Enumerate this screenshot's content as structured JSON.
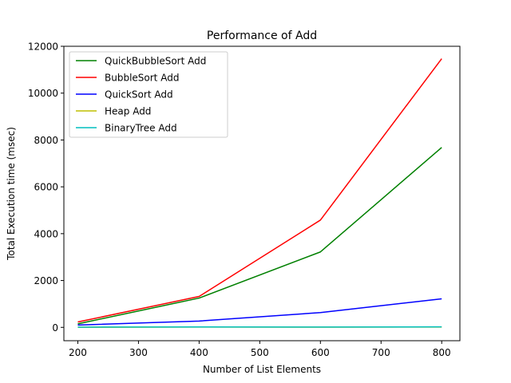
{
  "chart_data": {
    "type": "line",
    "title": "Performance of Add",
    "xlabel": "Number of List Elements",
    "ylabel": "Total Execution time (msec)",
    "x": [
      200,
      400,
      600,
      800
    ],
    "xlim": [
      177,
      830
    ],
    "ylim": [
      -570,
      12000
    ],
    "xticks": [
      200,
      300,
      400,
      500,
      600,
      700,
      800
    ],
    "yticks": [
      0,
      2000,
      4000,
      6000,
      8000,
      10000,
      12000
    ],
    "grid": false,
    "legend_position": "upper-left",
    "series": [
      {
        "name": "QuickBubbleSort Add",
        "color": "#008000",
        "values": [
          150,
          1250,
          3220,
          7680
        ]
      },
      {
        "name": "BubbleSort Add",
        "color": "#ff0000",
        "values": [
          230,
          1320,
          4580,
          11470
        ]
      },
      {
        "name": "QuickSort Add",
        "color": "#0000ff",
        "values": [
          100,
          270,
          630,
          1220
        ]
      },
      {
        "name": "Heap Add",
        "color": "#bfbf00",
        "values": [
          5,
          12,
          10,
          15
        ]
      },
      {
        "name": "BinaryTree Add",
        "color": "#00bfbf",
        "values": [
          10,
          18,
          15,
          20
        ]
      }
    ]
  }
}
